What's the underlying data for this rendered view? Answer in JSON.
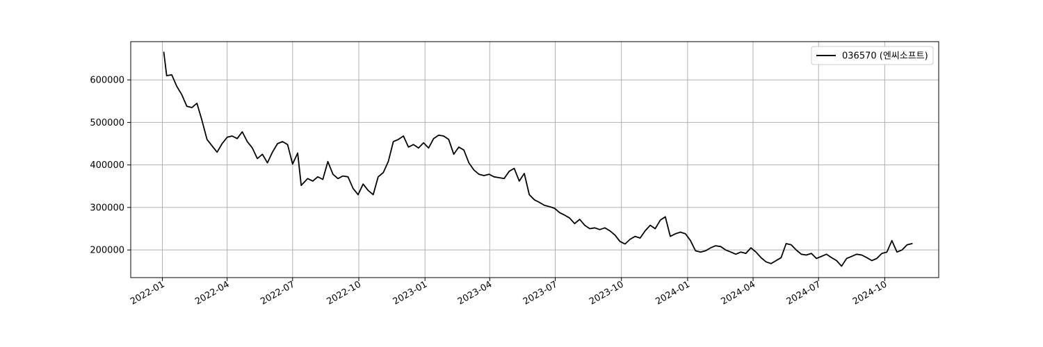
{
  "chart_data": {
    "type": "line",
    "title": "",
    "xlabel": "",
    "ylabel": "",
    "xlim": [
      "2021-11-18",
      "2024-12-15"
    ],
    "ylim": [
      135000,
      690000
    ],
    "grid": true,
    "legend_position": "upper right",
    "x_ticks": [
      "2022-01-01",
      "2022-04-01",
      "2022-07-01",
      "2022-10-01",
      "2023-01-01",
      "2023-04-01",
      "2023-07-01",
      "2023-10-01",
      "2024-01-01",
      "2024-04-01",
      "2024-07-01",
      "2024-10-01"
    ],
    "x_tick_labels": [
      "2022-01",
      "2022-04",
      "2022-07",
      "2022-10",
      "2023-01",
      "2023-04",
      "2023-07",
      "2023-10",
      "2024-01",
      "2024-04",
      "2024-07",
      "2024-10"
    ],
    "y_ticks": [
      200000,
      300000,
      400000,
      500000,
      600000
    ],
    "y_tick_labels": [
      "200000",
      "300000",
      "400000",
      "500000",
      "600000"
    ],
    "series": [
      {
        "name": "036570 (엔씨소프트)",
        "color": "#000000",
        "points": [
          [
            "2022-01-03",
            665000
          ],
          [
            "2022-01-07",
            610000
          ],
          [
            "2022-01-14",
            612000
          ],
          [
            "2022-01-21",
            585000
          ],
          [
            "2022-01-28",
            565000
          ],
          [
            "2022-02-04",
            538000
          ],
          [
            "2022-02-11",
            535000
          ],
          [
            "2022-02-18",
            545000
          ],
          [
            "2022-02-25",
            505000
          ],
          [
            "2022-03-04",
            460000
          ],
          [
            "2022-03-11",
            445000
          ],
          [
            "2022-03-18",
            430000
          ],
          [
            "2022-03-25",
            450000
          ],
          [
            "2022-04-01",
            465000
          ],
          [
            "2022-04-08",
            468000
          ],
          [
            "2022-04-15",
            462000
          ],
          [
            "2022-04-22",
            478000
          ],
          [
            "2022-04-29",
            455000
          ],
          [
            "2022-05-06",
            440000
          ],
          [
            "2022-05-13",
            415000
          ],
          [
            "2022-05-20",
            425000
          ],
          [
            "2022-05-27",
            405000
          ],
          [
            "2022-06-03",
            430000
          ],
          [
            "2022-06-10",
            450000
          ],
          [
            "2022-06-17",
            455000
          ],
          [
            "2022-06-24",
            448000
          ],
          [
            "2022-07-01",
            402000
          ],
          [
            "2022-07-08",
            428000
          ],
          [
            "2022-07-13",
            352000
          ],
          [
            "2022-07-22",
            368000
          ],
          [
            "2022-07-29",
            362000
          ],
          [
            "2022-08-05",
            372000
          ],
          [
            "2022-08-12",
            366000
          ],
          [
            "2022-08-19",
            408000
          ],
          [
            "2022-08-26",
            378000
          ],
          [
            "2022-09-02",
            368000
          ],
          [
            "2022-09-09",
            374000
          ],
          [
            "2022-09-16",
            372000
          ],
          [
            "2022-09-23",
            345000
          ],
          [
            "2022-09-30",
            330000
          ],
          [
            "2022-10-07",
            355000
          ],
          [
            "2022-10-14",
            340000
          ],
          [
            "2022-10-21",
            330000
          ],
          [
            "2022-10-28",
            372000
          ],
          [
            "2022-11-04",
            382000
          ],
          [
            "2022-11-11",
            408000
          ],
          [
            "2022-11-18",
            455000
          ],
          [
            "2022-11-25",
            460000
          ],
          [
            "2022-12-02",
            468000
          ],
          [
            "2022-12-09",
            442000
          ],
          [
            "2022-12-16",
            448000
          ],
          [
            "2022-12-23",
            440000
          ],
          [
            "2022-12-30",
            452000
          ],
          [
            "2023-01-06",
            440000
          ],
          [
            "2023-01-13",
            462000
          ],
          [
            "2023-01-20",
            470000
          ],
          [
            "2023-01-27",
            468000
          ],
          [
            "2023-02-03",
            460000
          ],
          [
            "2023-02-10",
            425000
          ],
          [
            "2023-02-17",
            442000
          ],
          [
            "2023-02-24",
            435000
          ],
          [
            "2023-03-03",
            405000
          ],
          [
            "2023-03-10",
            388000
          ],
          [
            "2023-03-17",
            378000
          ],
          [
            "2023-03-24",
            375000
          ],
          [
            "2023-03-31",
            378000
          ],
          [
            "2023-04-07",
            372000
          ],
          [
            "2023-04-14",
            370000
          ],
          [
            "2023-04-21",
            368000
          ],
          [
            "2023-04-28",
            385000
          ],
          [
            "2023-05-05",
            392000
          ],
          [
            "2023-05-12",
            362000
          ],
          [
            "2023-05-19",
            380000
          ],
          [
            "2023-05-26",
            330000
          ],
          [
            "2023-06-02",
            318000
          ],
          [
            "2023-06-09",
            312000
          ],
          [
            "2023-06-16",
            305000
          ],
          [
            "2023-06-23",
            302000
          ],
          [
            "2023-06-30",
            298000
          ],
          [
            "2023-07-07",
            288000
          ],
          [
            "2023-07-14",
            282000
          ],
          [
            "2023-07-21",
            275000
          ],
          [
            "2023-07-28",
            262000
          ],
          [
            "2023-08-04",
            272000
          ],
          [
            "2023-08-11",
            258000
          ],
          [
            "2023-08-18",
            250000
          ],
          [
            "2023-08-25",
            252000
          ],
          [
            "2023-09-01",
            248000
          ],
          [
            "2023-09-08",
            252000
          ],
          [
            "2023-09-15",
            245000
          ],
          [
            "2023-09-22",
            235000
          ],
          [
            "2023-09-29",
            220000
          ],
          [
            "2023-10-06",
            214000
          ],
          [
            "2023-10-13",
            225000
          ],
          [
            "2023-10-20",
            232000
          ],
          [
            "2023-10-27",
            228000
          ],
          [
            "2023-11-03",
            245000
          ],
          [
            "2023-11-10",
            258000
          ],
          [
            "2023-11-17",
            250000
          ],
          [
            "2023-11-24",
            270000
          ],
          [
            "2023-12-01",
            278000
          ],
          [
            "2023-12-08",
            232000
          ],
          [
            "2023-12-15",
            238000
          ],
          [
            "2023-12-22",
            242000
          ],
          [
            "2023-12-29",
            238000
          ],
          [
            "2024-01-05",
            222000
          ],
          [
            "2024-01-12",
            198000
          ],
          [
            "2024-01-19",
            195000
          ],
          [
            "2024-01-26",
            198000
          ],
          [
            "2024-02-02",
            205000
          ],
          [
            "2024-02-09",
            210000
          ],
          [
            "2024-02-16",
            208000
          ],
          [
            "2024-02-23",
            200000
          ],
          [
            "2024-03-01",
            195000
          ],
          [
            "2024-03-08",
            190000
          ],
          [
            "2024-03-15",
            195000
          ],
          [
            "2024-03-22",
            192000
          ],
          [
            "2024-03-29",
            205000
          ],
          [
            "2024-04-05",
            195000
          ],
          [
            "2024-04-12",
            182000
          ],
          [
            "2024-04-19",
            172000
          ],
          [
            "2024-04-26",
            168000
          ],
          [
            "2024-05-03",
            175000
          ],
          [
            "2024-05-10",
            182000
          ],
          [
            "2024-05-17",
            215000
          ],
          [
            "2024-05-24",
            212000
          ],
          [
            "2024-05-31",
            200000
          ],
          [
            "2024-06-07",
            190000
          ],
          [
            "2024-06-14",
            188000
          ],
          [
            "2024-06-21",
            192000
          ],
          [
            "2024-06-28",
            180000
          ],
          [
            "2024-07-05",
            185000
          ],
          [
            "2024-07-12",
            190000
          ],
          [
            "2024-07-19",
            182000
          ],
          [
            "2024-07-26",
            175000
          ],
          [
            "2024-08-02",
            162000
          ],
          [
            "2024-08-09",
            180000
          ],
          [
            "2024-08-16",
            185000
          ],
          [
            "2024-08-23",
            190000
          ],
          [
            "2024-08-30",
            188000
          ],
          [
            "2024-09-06",
            182000
          ],
          [
            "2024-09-13",
            175000
          ],
          [
            "2024-09-20",
            180000
          ],
          [
            "2024-09-27",
            192000
          ],
          [
            "2024-10-04",
            195000
          ],
          [
            "2024-10-11",
            222000
          ],
          [
            "2024-10-18",
            195000
          ],
          [
            "2024-10-25",
            200000
          ],
          [
            "2024-11-01",
            212000
          ],
          [
            "2024-11-08",
            215000
          ]
        ]
      }
    ]
  }
}
